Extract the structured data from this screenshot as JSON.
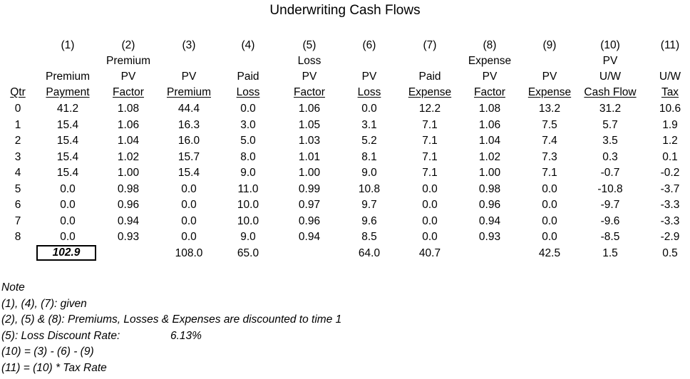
{
  "title": "Underwriting Cash Flows",
  "columns": [
    {
      "num": "",
      "lines": [
        "",
        "",
        "Qtr"
      ]
    },
    {
      "num": "(1)",
      "lines": [
        "",
        "Premium",
        "Payment"
      ]
    },
    {
      "num": "(2)",
      "lines": [
        "Premium",
        "PV",
        "Factor"
      ]
    },
    {
      "num": "(3)",
      "lines": [
        "",
        "PV",
        "Premium"
      ]
    },
    {
      "num": "(4)",
      "lines": [
        "",
        "Paid",
        "Loss"
      ]
    },
    {
      "num": "(5)",
      "lines": [
        "Loss",
        "PV",
        "Factor"
      ]
    },
    {
      "num": "(6)",
      "lines": [
        "",
        "PV",
        "Loss"
      ]
    },
    {
      "num": "(7)",
      "lines": [
        "",
        "Paid",
        "Expense"
      ]
    },
    {
      "num": "(8)",
      "lines": [
        "Expense",
        "PV",
        "Factor"
      ]
    },
    {
      "num": "(9)",
      "lines": [
        "",
        "PV",
        "Expense"
      ]
    },
    {
      "num": "(10)",
      "lines": [
        "PV",
        "U/W",
        "Cash Flow"
      ]
    },
    {
      "num": "(11)",
      "lines": [
        "",
        "U/W",
        "Tax"
      ]
    }
  ],
  "rows": [
    [
      "0",
      "41.2",
      "1.08",
      "44.4",
      "0.0",
      "1.06",
      "0.0",
      "12.2",
      "1.08",
      "13.2",
      "31.2",
      "10.6"
    ],
    [
      "1",
      "15.4",
      "1.06",
      "16.3",
      "3.0",
      "1.05",
      "3.1",
      "7.1",
      "1.06",
      "7.5",
      "5.7",
      "1.9"
    ],
    [
      "2",
      "15.4",
      "1.04",
      "16.0",
      "5.0",
      "1.03",
      "5.2",
      "7.1",
      "1.04",
      "7.4",
      "3.5",
      "1.2"
    ],
    [
      "3",
      "15.4",
      "1.02",
      "15.7",
      "8.0",
      "1.01",
      "8.1",
      "7.1",
      "1.02",
      "7.3",
      "0.3",
      "0.1"
    ],
    [
      "4",
      "15.4",
      "1.00",
      "15.4",
      "9.0",
      "1.00",
      "9.0",
      "7.1",
      "1.00",
      "7.1",
      "-0.7",
      "-0.2"
    ],
    [
      "5",
      "0.0",
      "0.98",
      "0.0",
      "11.0",
      "0.99",
      "10.8",
      "0.0",
      "0.98",
      "0.0",
      "-10.8",
      "-3.7"
    ],
    [
      "6",
      "0.0",
      "0.96",
      "0.0",
      "10.0",
      "0.97",
      "9.7",
      "0.0",
      "0.96",
      "0.0",
      "-9.7",
      "-3.3"
    ],
    [
      "7",
      "0.0",
      "0.94",
      "0.0",
      "10.0",
      "0.96",
      "9.6",
      "0.0",
      "0.94",
      "0.0",
      "-9.6",
      "-3.3"
    ],
    [
      "8",
      "0.0",
      "0.93",
      "0.0",
      "9.0",
      "0.94",
      "8.5",
      "0.0",
      "0.93",
      "0.0",
      "-8.5",
      "-2.9"
    ]
  ],
  "totals": [
    "",
    "102.9",
    "",
    "108.0",
    "65.0",
    "",
    "64.0",
    "40.7",
    "",
    "42.5",
    "1.5",
    "0.5"
  ],
  "notes": [
    "Note",
    "(1), (4), (7): given",
    "(2), (5) & (8): Premiums, Losses & Expenses are discounted to time 1",
    "(5): Loss Discount Rate:",
    "(10) = (3) - (6) - (9)",
    "(11) = (10) * Tax Rate"
  ],
  "loss_discount_rate": "6.13%"
}
